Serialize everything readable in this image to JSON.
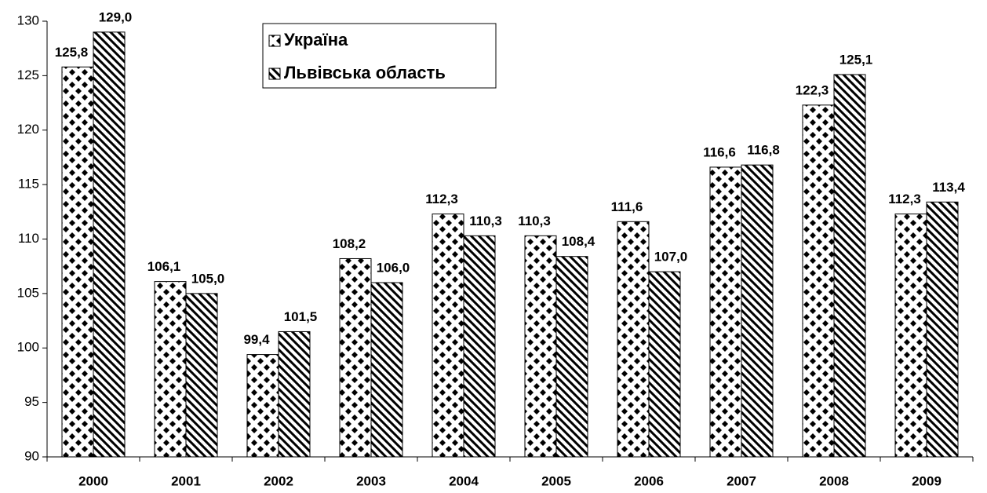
{
  "chart_data": {
    "type": "bar",
    "categories": [
      "2000",
      "2001",
      "2002",
      "2003",
      "2004",
      "2005",
      "2006",
      "2007",
      "2008",
      "2009"
    ],
    "series": [
      {
        "name": "Україна",
        "color": "#000000",
        "pattern": "diamond",
        "values": [
          125.8,
          106.1,
          99.4,
          108.2,
          112.3,
          110.3,
          111.6,
          116.6,
          122.3,
          112.3
        ],
        "value_labels": [
          "125,8",
          "106,1",
          "99,4",
          "108,2",
          "112,3",
          "110,3",
          "111,6",
          "116,6",
          "122,3",
          "112,3"
        ]
      },
      {
        "name": "Львівська область",
        "color": "#000000",
        "pattern": "diagonal",
        "values": [
          129.0,
          105.0,
          101.5,
          106.0,
          110.3,
          108.4,
          107.0,
          116.8,
          125.1,
          113.4
        ],
        "value_labels": [
          "129,0",
          "105,0",
          "101,5",
          "106,0",
          "110,3",
          "108,4",
          "107,0",
          "116,8",
          "125,1",
          "113,4"
        ]
      }
    ],
    "ylim": [
      90,
      130
    ],
    "yticks": [
      90,
      95,
      100,
      105,
      110,
      115,
      120,
      125,
      130
    ]
  }
}
